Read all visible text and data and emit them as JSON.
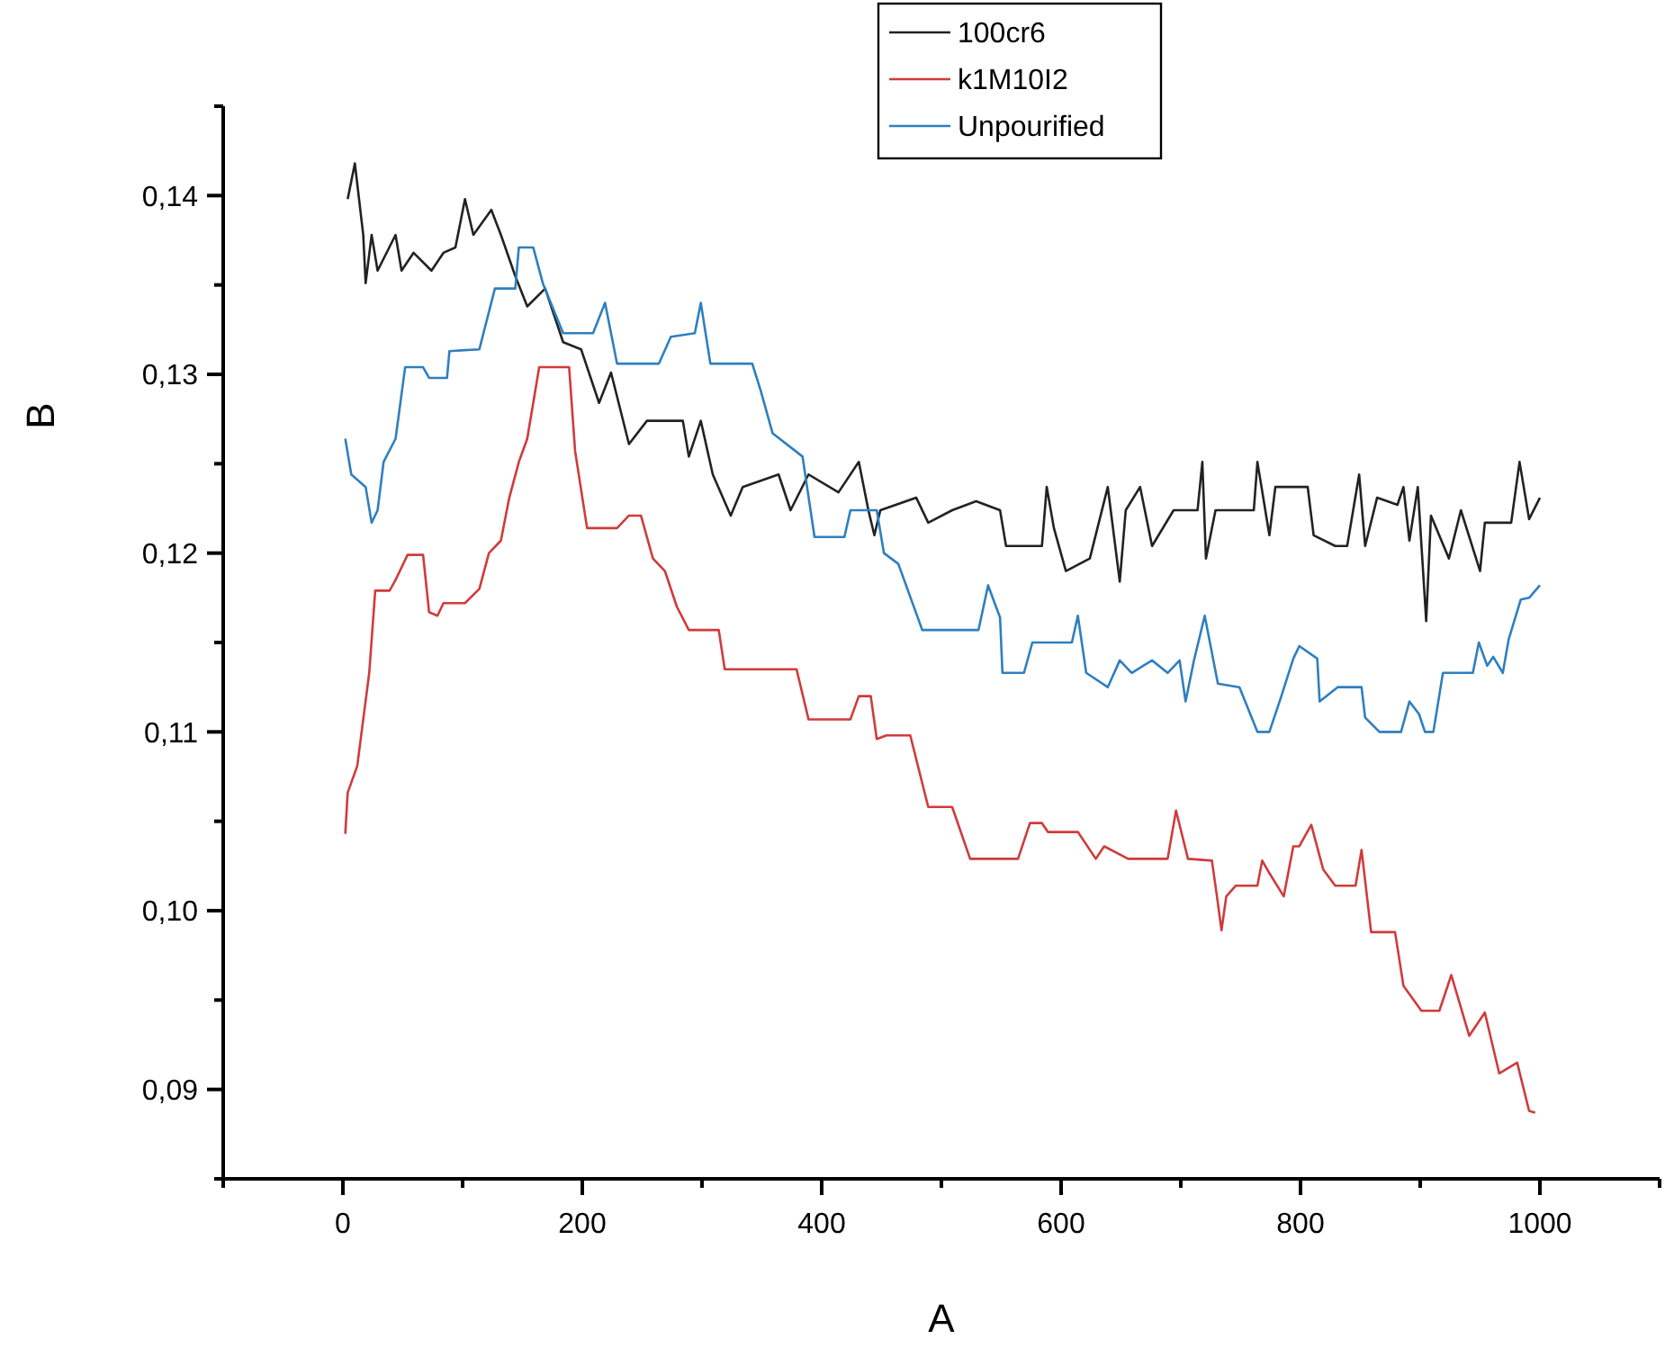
{
  "chart_data": {
    "type": "line",
    "xlabel": "A",
    "ylabel": "B",
    "legend": "top right",
    "xlim": [
      -100,
      1100
    ],
    "xticks": [
      {
        "value": -100,
        "label": null
      },
      0,
      {
        "value": 100,
        "label": null
      },
      200,
      {
        "value": 300,
        "label": null
      },
      400,
      {
        "value": 500,
        "label": null
      },
      600,
      {
        "value": 700,
        "label": null
      },
      800,
      {
        "value": 900,
        "label": null
      },
      1000,
      {
        "value": 1100,
        "label": null
      }
    ],
    "ylim": [
      0.085,
      0.145
    ],
    "yticks": [
      {
        "value": 0.085,
        "label": null
      },
      {
        "value": 0.09,
        "label": "0,09"
      },
      {
        "value": 0.095,
        "label": null
      },
      {
        "value": 0.1,
        "label": "0,10"
      },
      {
        "value": 0.105,
        "label": null
      },
      {
        "value": 0.11,
        "label": "0,11"
      },
      {
        "value": 0.115,
        "label": null
      },
      {
        "value": 0.12,
        "label": "0,12"
      },
      {
        "value": 0.125,
        "label": null
      },
      {
        "value": 0.13,
        "label": "0,13"
      },
      {
        "value": 0.135,
        "label": null
      },
      {
        "value": 0.14,
        "label": "0,14"
      },
      {
        "value": 0.145,
        "label": null
      }
    ],
    "series": [
      {
        "name": "100cr6",
        "color": "#222222",
        "x": [
          4,
          10,
          17,
          19,
          24,
          29,
          44,
          49,
          59,
          74,
          84,
          94,
          102,
          109,
          124,
          132,
          144,
          154,
          169,
          184,
          199,
          214,
          224,
          239,
          254,
          284,
          289,
          299,
          309,
          324,
          334,
          364,
          374,
          389,
          414,
          431,
          439,
          444,
          449,
          479,
          489,
          509,
          529,
          549,
          554,
          584,
          588,
          594,
          604,
          624,
          639,
          649,
          654,
          666,
          676,
          694,
          714,
          718,
          721,
          729,
          761,
          764,
          774,
          779,
          806,
          811,
          829,
          839,
          849,
          854,
          864,
          881,
          886,
          891,
          898,
          905,
          909,
          924,
          934,
          950,
          954,
          976,
          983,
          991,
          1000
        ],
        "values": [
          0.1398,
          0.1418,
          0.1378,
          0.1351,
          0.1378,
          0.1358,
          0.1378,
          0.1358,
          0.1368,
          0.1358,
          0.1368,
          0.1371,
          0.1398,
          0.1378,
          0.1392,
          0.1378,
          0.1355,
          0.1338,
          0.1348,
          0.1318,
          0.1314,
          0.1284,
          0.1301,
          0.1261,
          0.1274,
          0.1274,
          0.1254,
          0.1274,
          0.1244,
          0.1221,
          0.1237,
          0.1244,
          0.1224,
          0.1244,
          0.1234,
          0.1251,
          0.1224,
          0.121,
          0.1224,
          0.1231,
          0.1217,
          0.1224,
          0.1229,
          0.1224,
          0.1204,
          0.1204,
          0.1237,
          0.1214,
          0.119,
          0.1197,
          0.1237,
          0.1184,
          0.1224,
          0.1237,
          0.1204,
          0.1224,
          0.1224,
          0.1251,
          0.1197,
          0.1224,
          0.1224,
          0.1251,
          0.121,
          0.1237,
          0.1237,
          0.121,
          0.1204,
          0.1204,
          0.1244,
          0.1204,
          0.1231,
          0.1227,
          0.1237,
          0.1207,
          0.1237,
          0.1162,
          0.1221,
          0.1197,
          0.1224,
          0.119,
          0.1217,
          0.1217,
          0.1251,
          0.1219,
          0.1231
        ]
      },
      {
        "name": "k1M10I2",
        "color": "#d03b3b",
        "x": [
          2,
          4,
          12,
          17,
          22,
          27,
          39,
          44,
          54,
          67,
          72,
          79,
          84,
          102,
          114,
          122,
          132,
          139,
          147,
          154,
          164,
          189,
          194,
          204,
          229,
          239,
          249,
          259,
          269,
          279,
          289,
          314,
          319,
          379,
          389,
          424,
          431,
          441,
          446,
          454,
          474,
          489,
          509,
          524,
          564,
          574,
          584,
          589,
          614,
          629,
          636,
          656,
          689,
          696,
          706,
          726,
          730,
          734,
          738,
          746,
          764,
          768,
          774,
          786,
          794,
          799,
          809,
          819,
          829,
          846,
          851,
          859,
          879,
          886,
          901,
          916,
          926,
          941,
          954,
          966,
          981,
          991,
          996
        ],
        "values": [
          0.1043,
          0.1066,
          0.1081,
          0.1107,
          0.1133,
          0.1179,
          0.1179,
          0.1185,
          0.1199,
          0.1199,
          0.1167,
          0.1165,
          0.1172,
          0.1172,
          0.118,
          0.12,
          0.1207,
          0.1231,
          0.1251,
          0.1264,
          0.1304,
          0.1304,
          0.1257,
          0.1214,
          0.1214,
          0.1221,
          0.1221,
          0.1197,
          0.119,
          0.117,
          0.1157,
          0.1157,
          0.1135,
          0.1135,
          0.1107,
          0.1107,
          0.112,
          0.112,
          0.1096,
          0.1098,
          0.1098,
          0.1058,
          0.1058,
          0.1029,
          0.1029,
          0.1049,
          0.1049,
          0.1044,
          0.1044,
          0.1029,
          0.1036,
          0.1029,
          0.1029,
          0.1056,
          0.1029,
          0.1028,
          0.1009,
          0.0989,
          0.1008,
          0.1014,
          0.1014,
          0.1028,
          0.1021,
          0.1008,
          0.1036,
          0.1036,
          0.1048,
          0.1023,
          0.1014,
          0.1014,
          0.1034,
          0.0988,
          0.0988,
          0.0958,
          0.0944,
          0.0944,
          0.0964,
          0.093,
          0.0943,
          0.0909,
          0.0915,
          0.0888,
          0.0887
        ]
      },
      {
        "name": "Unpourified",
        "color": "#2f7fbf",
        "x": [
          2,
          7,
          19,
          24,
          29,
          34,
          44,
          52,
          67,
          72,
          87,
          89,
          114,
          127,
          144,
          147,
          159,
          167,
          184,
          209,
          219,
          229,
          264,
          274,
          294,
          299,
          307,
          342,
          349,
          359,
          384,
          394,
          419,
          424,
          446,
          452,
          464,
          484,
          531,
          539,
          549,
          551,
          569,
          576,
          609,
          614,
          621,
          639,
          649,
          659,
          676,
          689,
          699,
          704,
          711,
          720,
          731,
          749,
          764,
          774,
          784,
          794,
          799,
          814,
          816,
          831,
          851,
          854,
          866,
          884,
          891,
          899,
          904,
          911,
          919,
          944,
          949,
          956,
          961,
          969,
          974,
          984,
          991,
          1000
        ],
        "values": [
          0.1264,
          0.1244,
          0.1237,
          0.1217,
          0.1224,
          0.1251,
          0.1264,
          0.1304,
          0.1304,
          0.1298,
          0.1298,
          0.1313,
          0.1314,
          0.1348,
          0.1348,
          0.1371,
          0.1371,
          0.1351,
          0.1323,
          0.1323,
          0.134,
          0.1306,
          0.1306,
          0.1321,
          0.1323,
          0.134,
          0.1306,
          0.1306,
          0.1291,
          0.1267,
          0.1254,
          0.1209,
          0.1209,
          0.1224,
          0.1224,
          0.12,
          0.1194,
          0.1157,
          0.1157,
          0.1182,
          0.1164,
          0.1133,
          0.1133,
          0.115,
          0.115,
          0.1165,
          0.1133,
          0.1125,
          0.114,
          0.1133,
          0.114,
          0.1133,
          0.114,
          0.1117,
          0.114,
          0.1165,
          0.1127,
          0.1125,
          0.11,
          0.11,
          0.112,
          0.1141,
          0.1148,
          0.1141,
          0.1117,
          0.1125,
          0.1125,
          0.1108,
          0.11,
          0.11,
          0.1117,
          0.111,
          0.11,
          0.11,
          0.1133,
          0.1133,
          0.115,
          0.1137,
          0.1142,
          0.1133,
          0.1152,
          0.1174,
          0.1175,
          0.1182
        ]
      }
    ]
  }
}
